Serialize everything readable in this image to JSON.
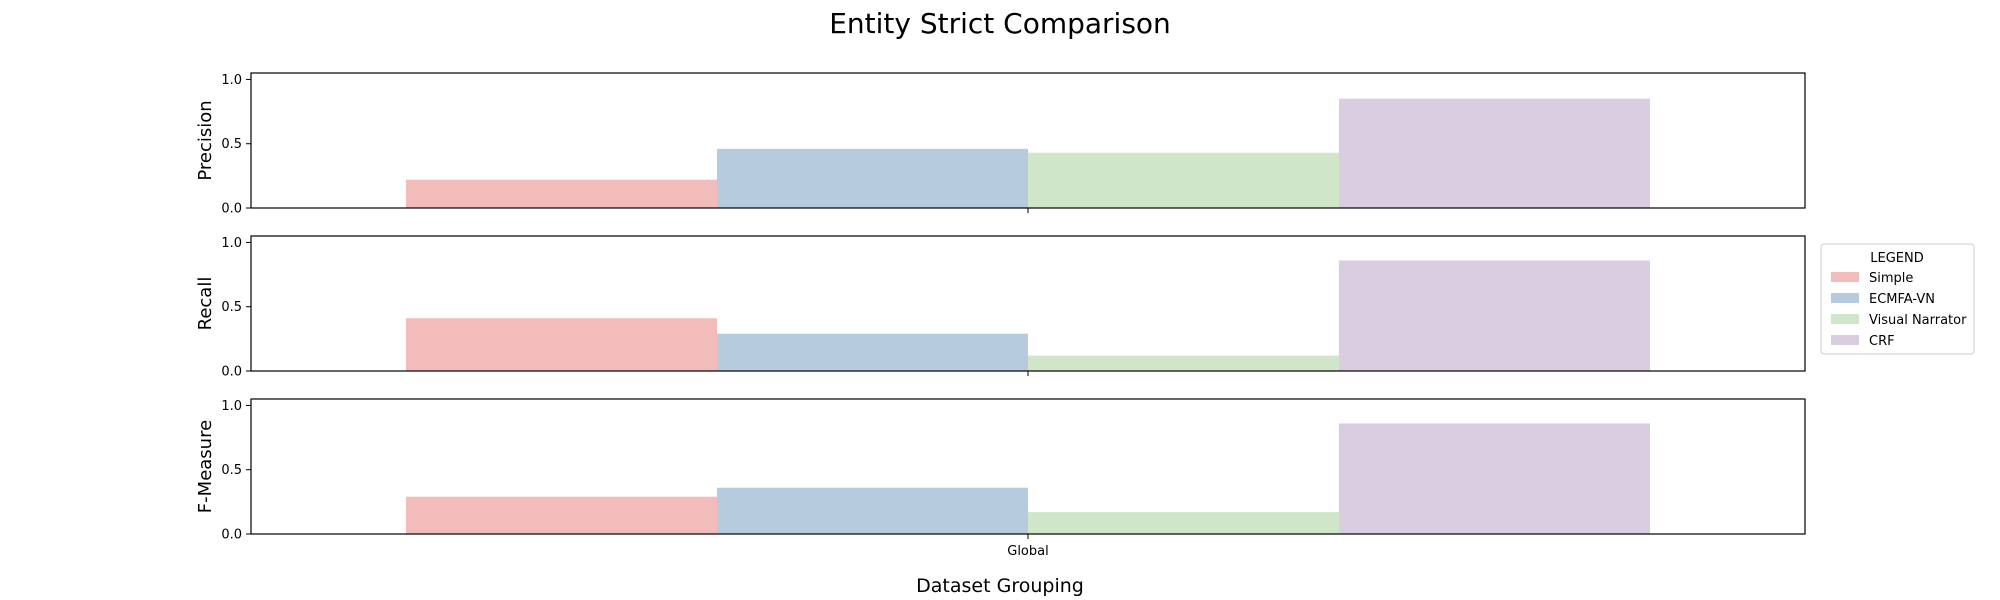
{
  "chart_data": {
    "type": "bar",
    "title": "Entity Strict Comparison",
    "xlabel": "Dataset Grouping",
    "categories": [
      "Global"
    ],
    "ylim": [
      0,
      1.05
    ],
    "yticks": [
      "0.0",
      "0.5",
      "1.0"
    ],
    "legend": {
      "title": "LEGEND",
      "placement": "right"
    },
    "series": [
      {
        "name": "Simple",
        "color": "#f1bcb9"
      },
      {
        "name": "ECMFA-VN",
        "color": "#b7cbdf"
      },
      {
        "name": "Visual Narrator",
        "color": "#cfe6c8"
      },
      {
        "name": "CRF",
        "color": "#dacde2"
      }
    ],
    "panels": [
      {
        "ylabel": "Precision",
        "values": [
          0.22,
          0.46,
          0.43,
          0.85
        ]
      },
      {
        "ylabel": "Recall",
        "values": [
          0.41,
          0.29,
          0.12,
          0.86
        ]
      },
      {
        "ylabel": "F-Measure",
        "values": [
          0.29,
          0.36,
          0.17,
          0.86
        ]
      }
    ]
  }
}
